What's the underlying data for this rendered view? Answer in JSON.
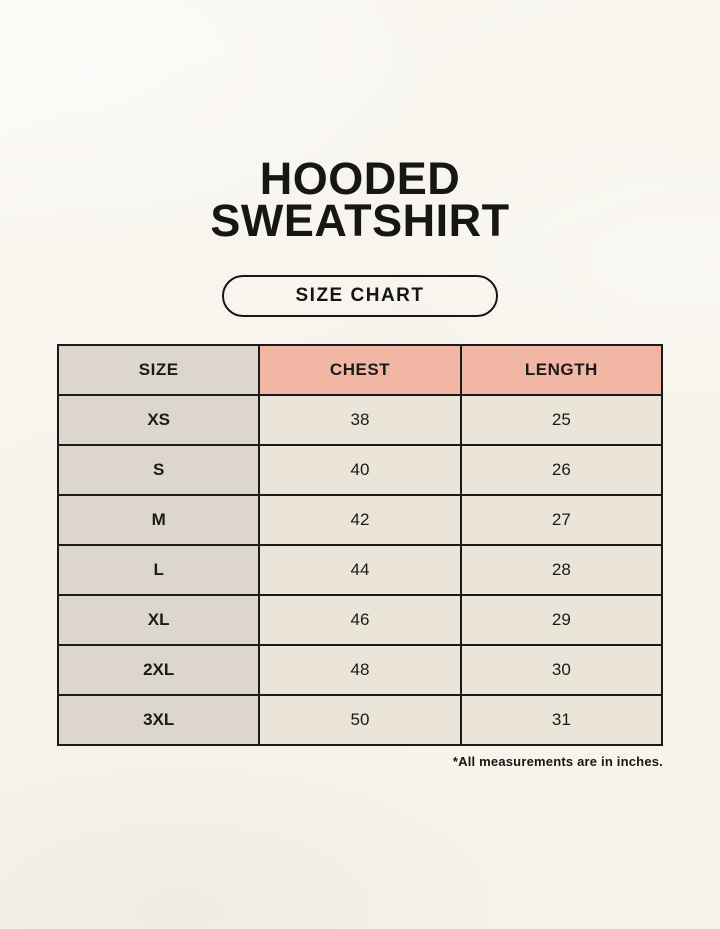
{
  "header": {
    "title_line1": "HOODED",
    "title_line2": "SWEATSHIRT",
    "badge_label": "SIZE CHART"
  },
  "footnote": "*All measurements are in inches.",
  "colors": {
    "page_background": "#f7f4ec",
    "header_pink": "#f2b6a4",
    "size_column_beige": "#ddd6cd",
    "data_cell_cream": "#eae4d9",
    "border_black": "#1a1a1a"
  },
  "chart_data": {
    "type": "table",
    "title": "HOODED SWEATSHIRT — SIZE CHART",
    "columns": [
      "SIZE",
      "CHEST",
      "LENGTH"
    ],
    "rows": [
      [
        "XS",
        "38",
        "25"
      ],
      [
        "S",
        "40",
        "26"
      ],
      [
        "M",
        "42",
        "27"
      ],
      [
        "L",
        "44",
        "28"
      ],
      [
        "XL",
        "46",
        "29"
      ],
      [
        "2XL",
        "48",
        "30"
      ],
      [
        "3XL",
        "50",
        "31"
      ]
    ],
    "units": "inches"
  }
}
